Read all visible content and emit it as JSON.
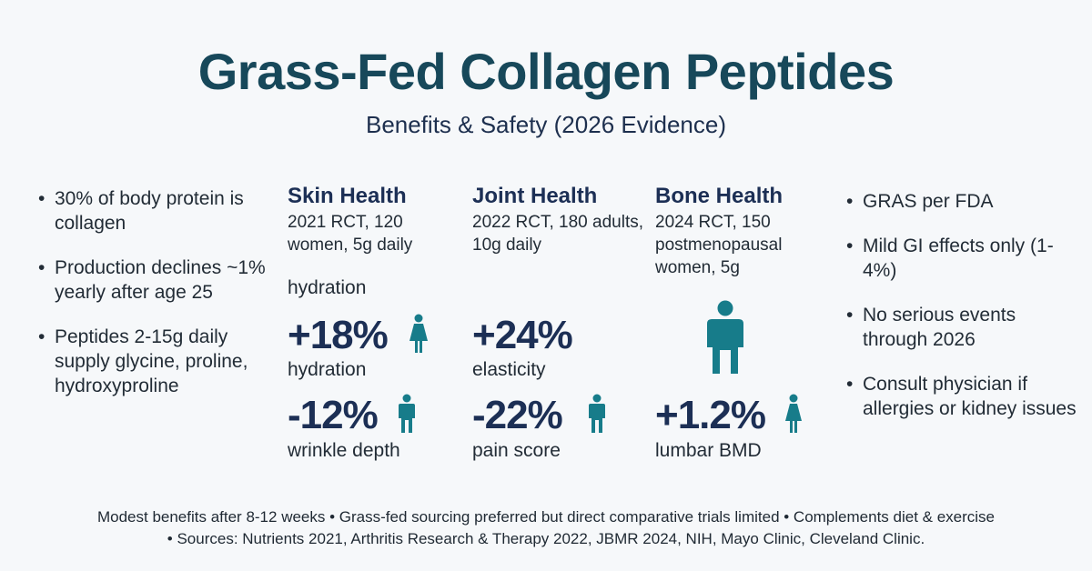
{
  "header": {
    "title": "Grass-Fed Collagen Peptides",
    "subtitle": "Benefits & Safety (2026 Evidence)"
  },
  "left_bullets": [
    "30% of body protein is collagen",
    "Production declines ~1% yearly after age 25",
    "Peptides 2-15g daily supply glycine, proline, hydroxyproline"
  ],
  "columns": {
    "skin": {
      "title": "Skin Health",
      "study": "2021 RCT, 120 women, 5g daily",
      "label_above": "hydration",
      "stats": [
        {
          "value": "+18%",
          "label": "hydration",
          "icon": "woman-icon"
        },
        {
          "value": "-12%",
          "label": "wrinkle depth",
          "icon": "person-icon"
        }
      ]
    },
    "joint": {
      "title": "Joint Health",
      "study": "2022 RCT, 180 adults, 10g daily",
      "stats": [
        {
          "value": "+24%",
          "label": "elasticity"
        },
        {
          "value": "-22%",
          "label": "pain score",
          "icon": "person-icon"
        }
      ]
    },
    "bone": {
      "title": "Bone Health",
      "study": "2024 RCT, 150 postmenopausal women, 5g",
      "large_icon": "person-icon",
      "stats": [
        {
          "value": "+1.2%",
          "label": "lumbar BMD",
          "icon": "woman-icon"
        }
      ]
    }
  },
  "right_bullets": [
    "GRAS per FDA",
    "Mild GI effects only (1-4%)",
    "No serious events through 2026",
    "Consult physician if allergies or kidney issues"
  ],
  "footer": {
    "line1": "Modest benefits after 8-12 weeks • Grass-fed sourcing preferred but direct comparative trials limited • Complements diet & exercise",
    "line2": "• Sources: Nutrients 2021, Arthritis Research & Therapy 2022, JBMR 2024, NIH, Mayo Clinic, Cleveland Clinic."
  },
  "colors": {
    "title": "#17485a",
    "heading": "#1c2f55",
    "icon_teal": "#177c8a",
    "background": "#f6f8fa"
  }
}
